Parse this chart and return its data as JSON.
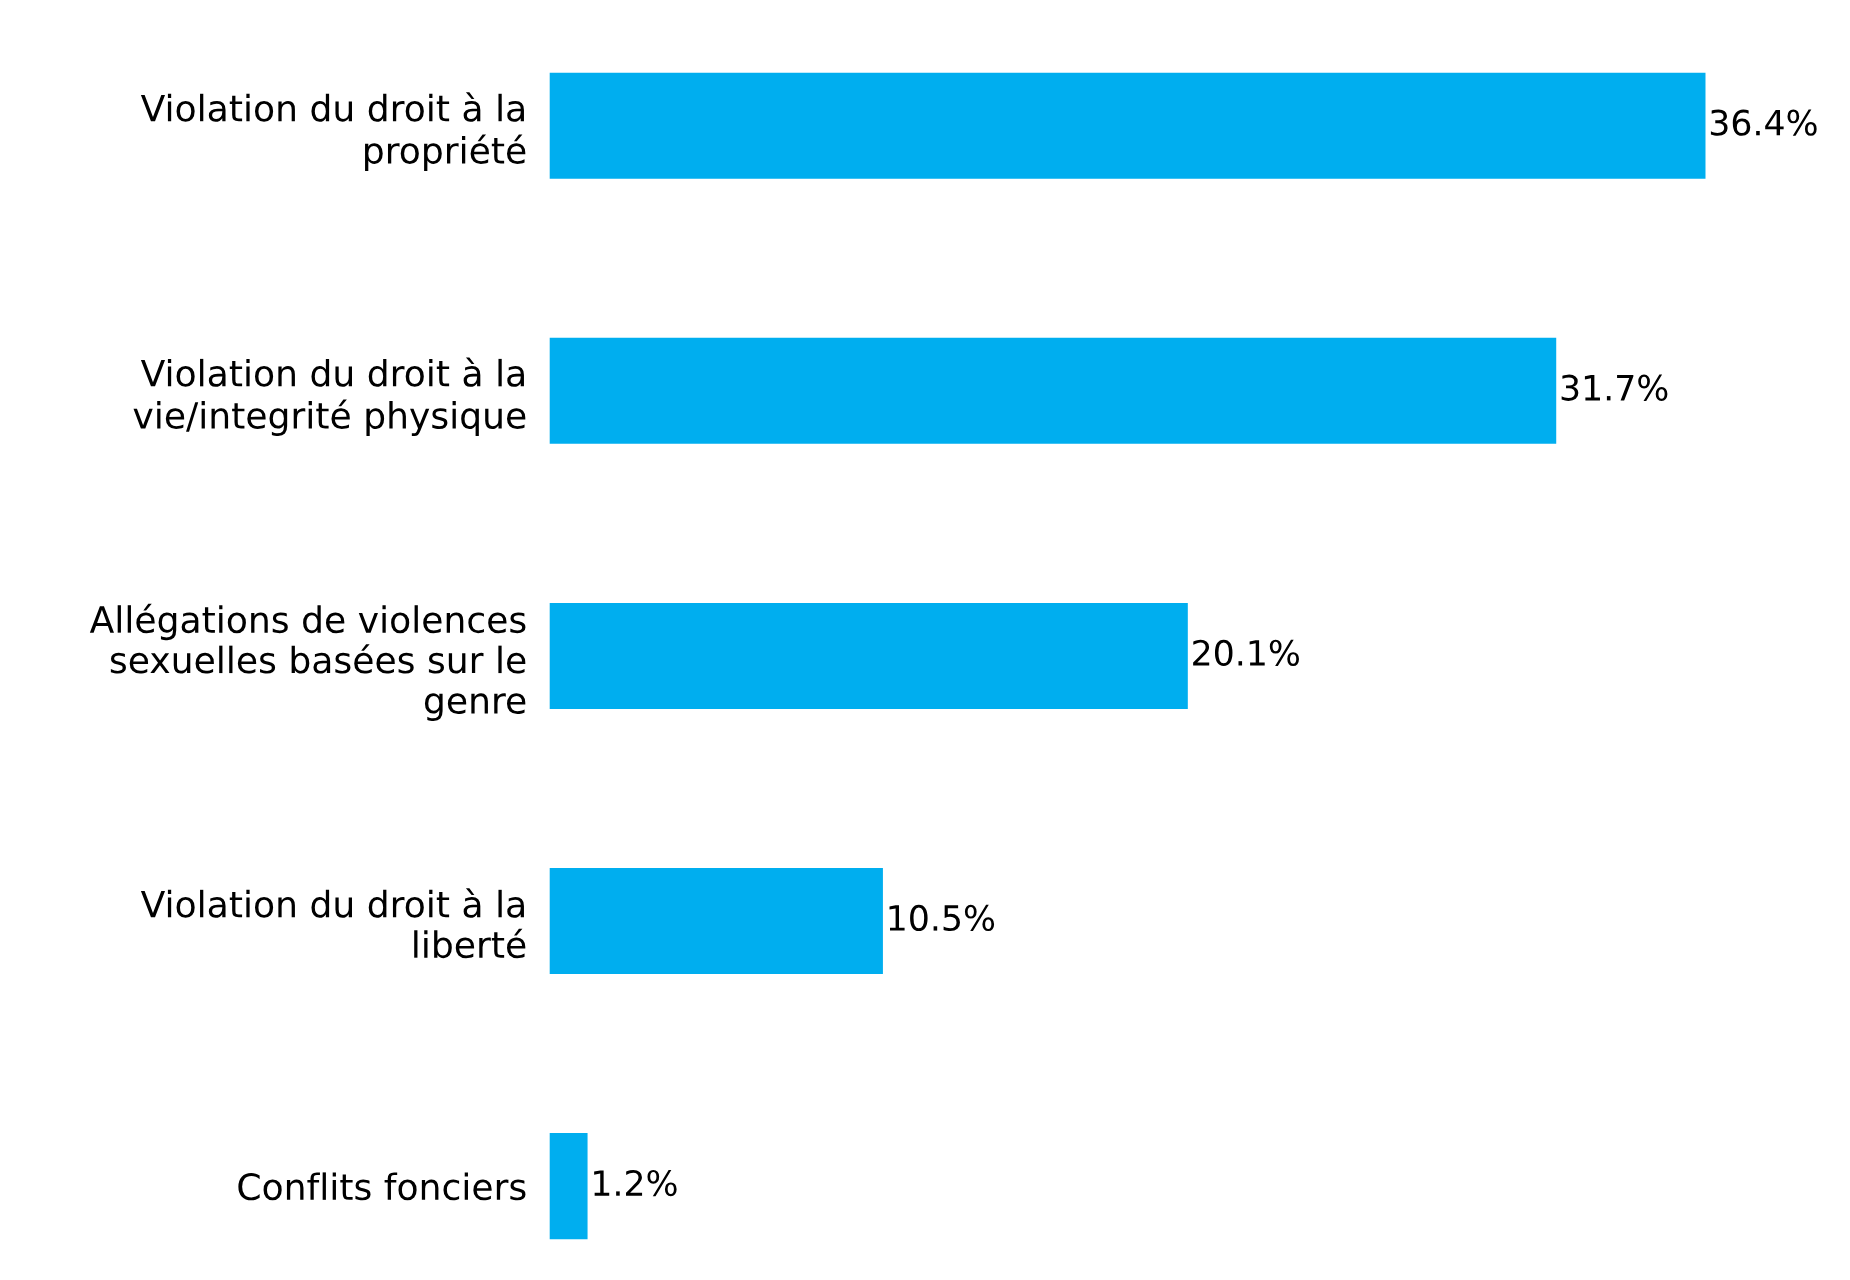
{
  "chart_data": {
    "type": "bar",
    "orientation": "horizontal",
    "categories": [
      "Violation du droit à la\npropriété",
      "Violation du droit à la\nvie/integrité physique",
      "Allégations de violences\nsexuelles basées sur le\ngenre",
      "Violation du droit à la\nliberté",
      "Conflits fonciers"
    ],
    "values": [
      36.4,
      31.7,
      20.1,
      10.5,
      1.2
    ],
    "value_labels": [
      "36.4%",
      "31.7%",
      "20.1%",
      "10.5%",
      "1.2%"
    ],
    "color": "#00aeef"
  }
}
